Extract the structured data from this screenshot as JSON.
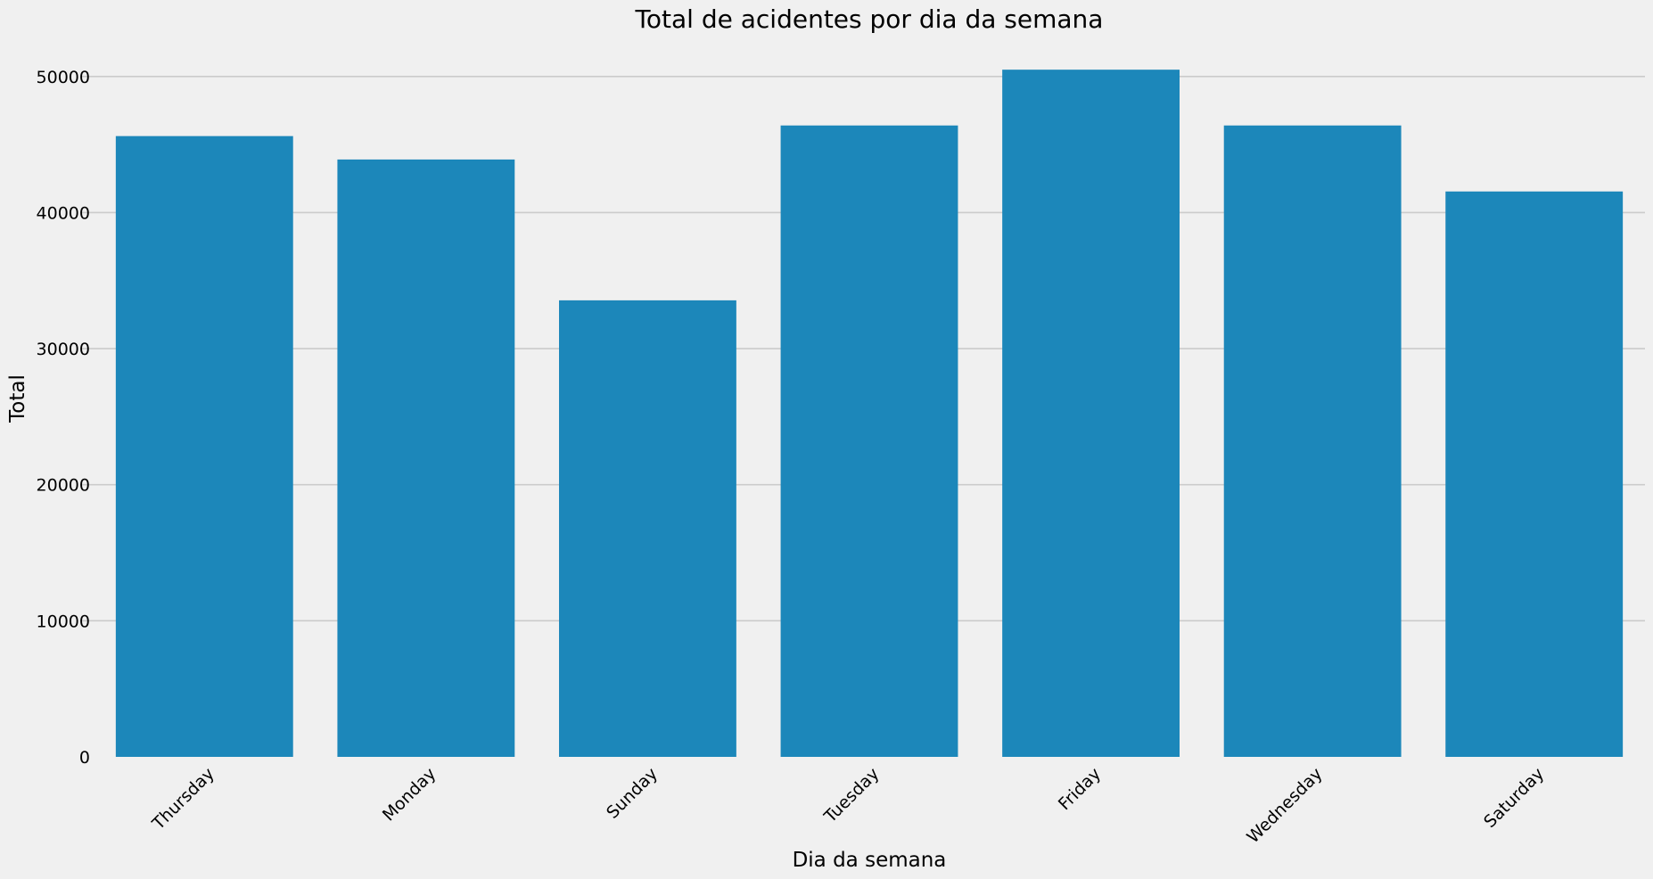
{
  "chart_data": {
    "type": "bar",
    "title": "Total de acidentes por dia da semana",
    "xlabel": "Dia da semana",
    "ylabel": "Total",
    "categories": [
      "Thursday",
      "Monday",
      "Sunday",
      "Tuesday",
      "Friday",
      "Wednesday",
      "Saturday"
    ],
    "values": [
      45620,
      43900,
      33550,
      46400,
      50500,
      46400,
      41550
    ],
    "ylim": [
      0,
      53000
    ],
    "yticks": [
      0,
      10000,
      20000,
      30000,
      40000,
      50000
    ],
    "ytick_labels": [
      "0",
      "10000",
      "20000",
      "30000",
      "40000",
      "50000"
    ],
    "grid": "horizontal",
    "legend": "none",
    "bar_color": "#1c87ba",
    "background_color": "#f0f0f0",
    "grid_color": "#cbcbcb"
  }
}
